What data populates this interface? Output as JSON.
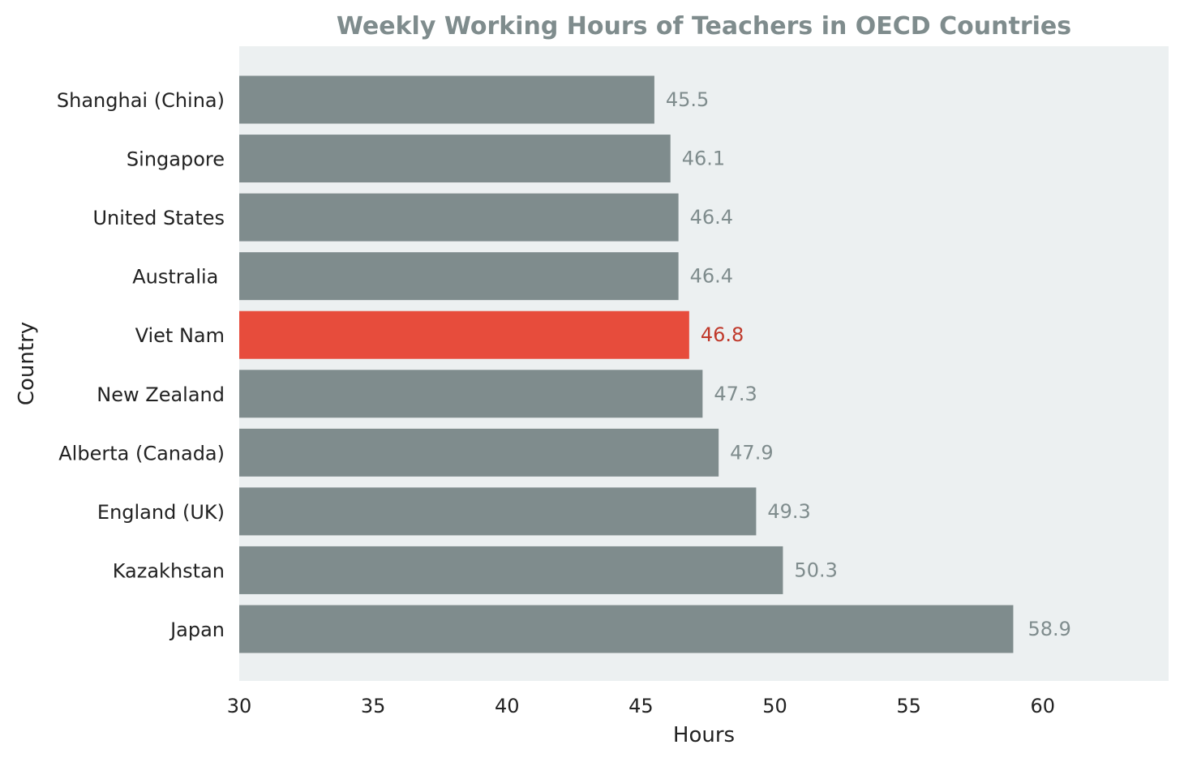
{
  "chart_data": {
    "type": "bar",
    "orientation": "horizontal",
    "title": "Weekly Working Hours of Teachers in OECD Countries",
    "xlabel": "Hours",
    "ylabel": "Country",
    "categories": [
      "Shanghai (China)",
      "Singapore",
      "United States",
      "Australia ",
      "Viet Nam",
      "New Zealand",
      "Alberta (Canada)",
      "England (UK)",
      "Kazakhstan",
      "Japan"
    ],
    "values": [
      45.5,
      46.1,
      46.4,
      46.4,
      46.8,
      47.3,
      47.9,
      49.3,
      50.3,
      58.9
    ],
    "value_labels": [
      "45.5",
      "46.1",
      "46.4",
      "46.4",
      "46.8",
      "47.3",
      "47.9",
      "49.3",
      "50.3",
      "58.9"
    ],
    "highlight_category": "Viet Nam",
    "xlim": [
      30,
      64.7
    ],
    "xticks": [
      30,
      35,
      40,
      45,
      50,
      55,
      60
    ],
    "grid": false,
    "colors": {
      "bar": "#7f8c8d",
      "highlight_bar": "#e74c3c",
      "label": "#7f8c8d",
      "highlight_label": "#c0392b",
      "plot_background": "#ecf0f1",
      "title": "#7f8c8d"
    }
  }
}
